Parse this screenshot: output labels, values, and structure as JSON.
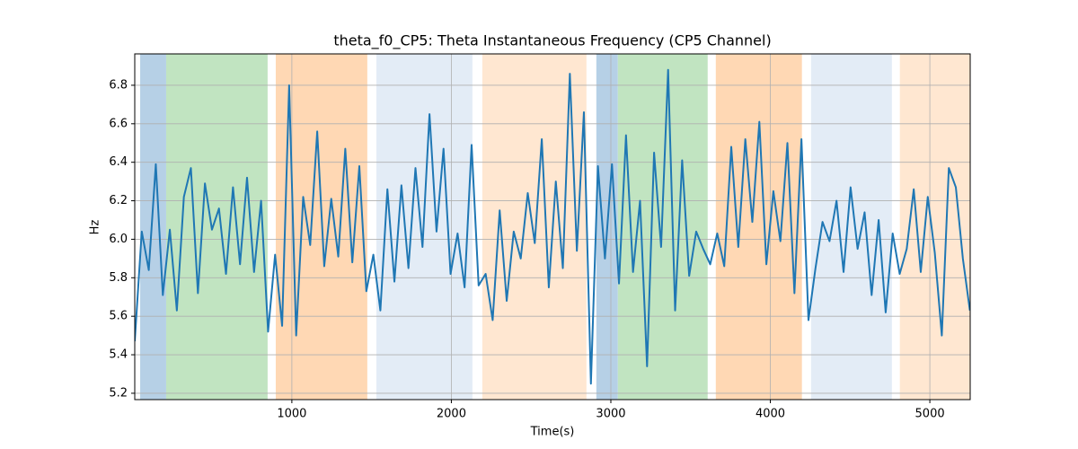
{
  "chart_data": {
    "type": "line",
    "title": "theta_f0_CP5: Theta Instantaneous Frequency (CP5 Channel)",
    "xlabel": "Time(s)",
    "ylabel": "Hz",
    "color": "#1f77b4",
    "x": [
      15,
      59,
      103,
      147,
      191,
      235,
      279,
      323,
      367,
      411,
      455,
      499,
      543,
      587,
      631,
      675,
      719,
      763,
      807,
      851,
      895,
      939,
      983,
      1027,
      1071,
      1115,
      1159,
      1203,
      1247,
      1291,
      1335,
      1379,
      1423,
      1467,
      1511,
      1555,
      1599,
      1643,
      1687,
      1731,
      1775,
      1819,
      1863,
      1907,
      1951,
      1995,
      2039,
      2083,
      2127,
      2171,
      2215,
      2259,
      2303,
      2347,
      2391,
      2435,
      2479,
      2523,
      2567,
      2611,
      2655,
      2699,
      2743,
      2787,
      2831,
      2875,
      2919,
      2963,
      3007,
      3051,
      3095,
      3139,
      3183,
      3227,
      3271,
      3315,
      3359,
      3403,
      3447,
      3491,
      3535,
      3579,
      3623,
      3667,
      3711,
      3755,
      3799,
      3843,
      3887,
      3931,
      3975,
      4019,
      4063,
      4107,
      4151,
      4195,
      4239,
      4283,
      4327,
      4371,
      4415,
      4459,
      4503,
      4547,
      4591,
      4635,
      4679,
      4723,
      4767,
      4811,
      4855,
      4899,
      4943,
      4987,
      5031,
      5075,
      5119,
      5163,
      5207,
      5251
    ],
    "values": [
      5.47,
      6.04,
      5.84,
      6.39,
      5.71,
      6.05,
      5.63,
      6.22,
      6.37,
      5.72,
      6.29,
      6.05,
      6.16,
      5.82,
      6.27,
      5.87,
      6.32,
      5.83,
      6.2,
      5.52,
      5.92,
      5.55,
      6.8,
      5.5,
      6.22,
      5.97,
      6.56,
      5.86,
      6.21,
      5.91,
      6.47,
      5.88,
      6.38,
      5.73,
      5.92,
      5.63,
      6.26,
      5.78,
      6.28,
      5.85,
      6.37,
      5.96,
      6.65,
      6.04,
      6.47,
      5.82,
      6.03,
      5.75,
      6.49,
      5.76,
      5.82,
      5.58,
      6.15,
      5.68,
      6.04,
      5.9,
      6.24,
      5.98,
      6.52,
      5.75,
      6.3,
      5.85,
      6.86,
      5.94,
      6.66,
      5.25,
      6.38,
      5.9,
      6.39,
      5.77,
      6.54,
      5.83,
      6.2,
      5.34,
      6.45,
      5.96,
      6.88,
      5.63,
      6.41,
      5.81,
      6.04,
      5.95,
      5.87,
      6.03,
      5.86,
      6.48,
      5.96,
      6.52,
      6.09,
      6.61,
      5.87,
      6.25,
      5.99,
      6.5,
      5.72,
      6.52,
      5.58,
      5.85,
      6.09,
      5.99,
      6.2,
      5.83,
      6.27,
      5.95,
      6.14,
      5.71,
      6.1,
      5.62,
      6.03,
      5.82,
      5.95,
      6.26,
      5.83,
      6.22,
      5.93,
      5.5,
      6.37,
      6.27,
      5.9,
      5.63
    ],
    "spans": [
      {
        "x0": 49,
        "x1": 212,
        "color": "#b6d0e6"
      },
      {
        "x0": 212,
        "x1": 848,
        "color": "#c1e4c1"
      },
      {
        "x0": 899,
        "x1": 1473,
        "color": "#ffd8b4"
      },
      {
        "x0": 1530,
        "x1": 2132,
        "color": "#e3ecf6"
      },
      {
        "x0": 2194,
        "x1": 2847,
        "color": "#ffe7d1"
      },
      {
        "x0": 2909,
        "x1": 3044,
        "color": "#b6d0e6"
      },
      {
        "x0": 3044,
        "x1": 3607,
        "color": "#c1e4c1"
      },
      {
        "x0": 3658,
        "x1": 4198,
        "color": "#ffd8b4"
      },
      {
        "x0": 4255,
        "x1": 4762,
        "color": "#e3ecf6"
      },
      {
        "x0": 4812,
        "x1": 5253,
        "color": "#ffe7d1"
      }
    ],
    "xlim": [
      15,
      5253
    ],
    "xticks": [
      1000,
      2000,
      3000,
      4000,
      5000
    ],
    "ylim": [
      5.167,
      6.963
    ],
    "yticks": [
      5.2,
      5.4,
      5.6,
      5.8,
      {
        "value": 6,
        "label": "6.0"
      },
      6.2,
      6.4,
      6.6,
      6.8
    ],
    "grid": true
  }
}
